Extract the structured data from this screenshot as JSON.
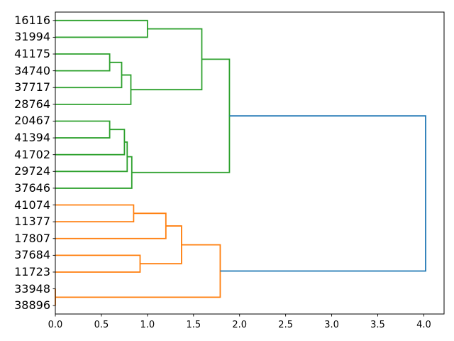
{
  "figure": {
    "background": "#ffffff",
    "title": ""
  },
  "chart_data": {
    "type": "dendrogram",
    "orientation": "labels-left-root-right",
    "title": "",
    "xlabel": "",
    "ylabel": "",
    "grid": false,
    "xlim": [
      0,
      4.22
    ],
    "xticks": [
      "0.0",
      "0.5",
      "1.0",
      "1.5",
      "2.0",
      "2.5",
      "3.0",
      "3.5",
      "4.0"
    ],
    "xtick_values": [
      0.0,
      0.5,
      1.0,
      1.5,
      2.0,
      2.5,
      3.0,
      3.5,
      4.0
    ],
    "leaves": [
      "16116",
      "31994",
      "41175",
      "34740",
      "37717",
      "28764",
      "20467",
      "41394",
      "41702",
      "29724",
      "37646",
      "41074",
      "11377",
      "17807",
      "37684",
      "11723",
      "33948",
      "38896"
    ],
    "links": [
      {
        "a": "L0",
        "b": "L1",
        "distance": 1.0,
        "color": "green"
      },
      {
        "a": "L2",
        "b": "L3",
        "distance": 0.59,
        "color": "green"
      },
      {
        "a": "C1",
        "b": "L4",
        "distance": 0.72,
        "color": "green"
      },
      {
        "a": "C2",
        "b": "L5",
        "distance": 0.82,
        "color": "green"
      },
      {
        "a": "C0",
        "b": "C3",
        "distance": 1.59,
        "color": "green"
      },
      {
        "a": "L6",
        "b": "L7",
        "distance": 0.59,
        "color": "green"
      },
      {
        "a": "C5",
        "b": "L8",
        "distance": 0.75,
        "color": "green"
      },
      {
        "a": "C6",
        "b": "L9",
        "distance": 0.78,
        "color": "green"
      },
      {
        "a": "C7",
        "b": "L10",
        "distance": 0.83,
        "color": "green"
      },
      {
        "a": "C4",
        "b": "C8",
        "distance": 1.89,
        "color": "green"
      },
      {
        "a": "L11",
        "b": "L12",
        "distance": 0.85,
        "color": "orange"
      },
      {
        "a": "C10",
        "b": "L13",
        "distance": 1.2,
        "color": "orange"
      },
      {
        "a": "L14",
        "b": "L15",
        "distance": 0.92,
        "color": "orange"
      },
      {
        "a": "C11",
        "b": "C12",
        "distance": 1.37,
        "color": "orange"
      },
      {
        "a": "L16",
        "b": "L17",
        "distance": 0.0,
        "color": "orange"
      },
      {
        "a": "C13",
        "b": "C14",
        "distance": 1.79,
        "color": "orange"
      },
      {
        "a": "C9",
        "b": "C15",
        "distance": 4.02,
        "color": "blue"
      }
    ],
    "colors": {
      "green": "#2ca02c",
      "orange": "#ff7f0e",
      "blue": "#1f77b4",
      "spine": "#000000",
      "tick": "#000000",
      "text": "#000000"
    }
  }
}
